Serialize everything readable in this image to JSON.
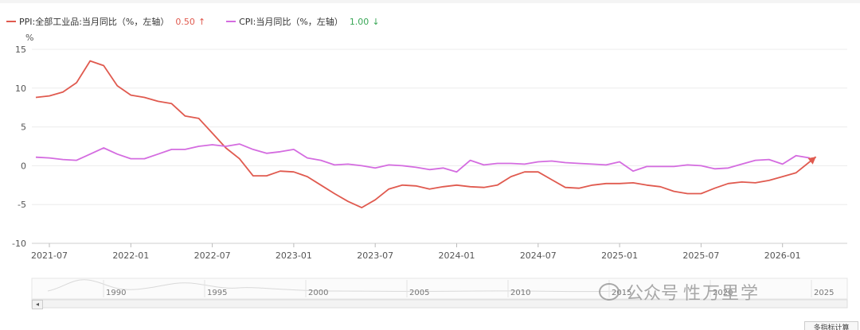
{
  "legend": [
    {
      "label": "PPI:全部工业品:当月同比（%，左轴）",
      "value": "0.50",
      "arrow": "↑",
      "color": "#e05a4f",
      "value_color": "#e05a4f"
    },
    {
      "label": "CPI:当月同比（%，左轴）",
      "value": "1.00",
      "arrow": "↓",
      "color": "#d46ce0",
      "value_color": "#3aa757"
    }
  ],
  "chart_data": {
    "type": "line",
    "ylabel": "%",
    "ylim": [
      -10,
      15
    ],
    "yticks": [
      15,
      10,
      5,
      0,
      -5,
      -10
    ],
    "xticks": [
      "2021-07",
      "2022-01",
      "2022-07",
      "2023-01",
      "2023-07",
      "2024-01",
      "2024-07",
      "2025-01",
      "2025-07",
      "2026-01"
    ],
    "x": [
      "2021-06",
      "2021-07",
      "2021-08",
      "2021-09",
      "2021-10",
      "2021-11",
      "2021-12",
      "2022-01",
      "2022-02",
      "2022-03",
      "2022-04",
      "2022-05",
      "2022-06",
      "2022-07",
      "2022-08",
      "2022-09",
      "2022-10",
      "2022-11",
      "2022-12",
      "2023-01",
      "2023-02",
      "2023-03",
      "2023-04",
      "2023-05",
      "2023-06",
      "2023-07",
      "2023-08",
      "2023-09",
      "2023-10",
      "2023-11",
      "2023-12",
      "2024-01",
      "2024-02",
      "2024-03",
      "2024-04",
      "2024-05",
      "2024-06",
      "2024-07",
      "2024-08",
      "2024-09",
      "2024-10",
      "2024-11",
      "2024-12",
      "2025-01",
      "2025-02",
      "2025-03",
      "2025-04",
      "2025-05",
      "2025-06",
      "2025-07",
      "2025-08",
      "2025-09",
      "2025-10",
      "2025-11",
      "2025-12",
      "2026-01",
      "2026-02",
      "2026-03"
    ],
    "series": [
      {
        "name": "PPI:全部工业品:当月同比（%，左轴）",
        "color": "#e05a4f",
        "values": [
          8.8,
          9.0,
          9.5,
          10.7,
          13.5,
          12.9,
          10.3,
          9.1,
          8.8,
          8.3,
          8.0,
          6.4,
          6.1,
          4.2,
          2.3,
          0.9,
          -1.3,
          -1.3,
          -0.7,
          -0.8,
          -1.4,
          -2.5,
          -3.6,
          -4.6,
          -5.4,
          -4.4,
          -3.0,
          -2.5,
          -2.6,
          -3.0,
          -2.7,
          -2.5,
          -2.7,
          -2.8,
          -2.5,
          -1.4,
          -0.8,
          -0.8,
          -1.8,
          -2.8,
          -2.9,
          -2.5,
          -2.3,
          -2.3,
          -2.2,
          -2.5,
          -2.7,
          -3.3,
          -3.6,
          -3.6,
          -2.9,
          -2.3,
          -2.1,
          -2.2,
          -1.9,
          -1.4,
          -0.9,
          0.5
        ]
      },
      {
        "name": "CPI:当月同比（%，左轴）",
        "color": "#d46ce0",
        "values": [
          1.1,
          1.0,
          0.8,
          0.7,
          1.5,
          2.3,
          1.5,
          0.9,
          0.9,
          1.5,
          2.1,
          2.1,
          2.5,
          2.7,
          2.5,
          2.8,
          2.1,
          1.6,
          1.8,
          2.1,
          1.0,
          0.7,
          0.1,
          0.2,
          0.0,
          -0.3,
          0.1,
          0.0,
          -0.2,
          -0.5,
          -0.3,
          -0.8,
          0.7,
          0.1,
          0.3,
          0.3,
          0.2,
          0.5,
          0.6,
          0.4,
          0.3,
          0.2,
          0.1,
          0.5,
          -0.7,
          -0.1,
          -0.1,
          -0.1,
          0.1,
          0.0,
          -0.4,
          -0.3,
          0.2,
          0.7,
          0.8,
          0.2,
          1.3,
          1.0
        ]
      }
    ],
    "grid": true
  },
  "navigator": {
    "ticks": [
      "1990",
      "1995",
      "2000",
      "2005",
      "2010",
      "2015",
      "2020",
      "2025"
    ]
  },
  "watermark": {
    "label": "公众号",
    "name": "性万里学"
  },
  "scroll_left_icon": "◂",
  "bottom_button": "多指标计算"
}
